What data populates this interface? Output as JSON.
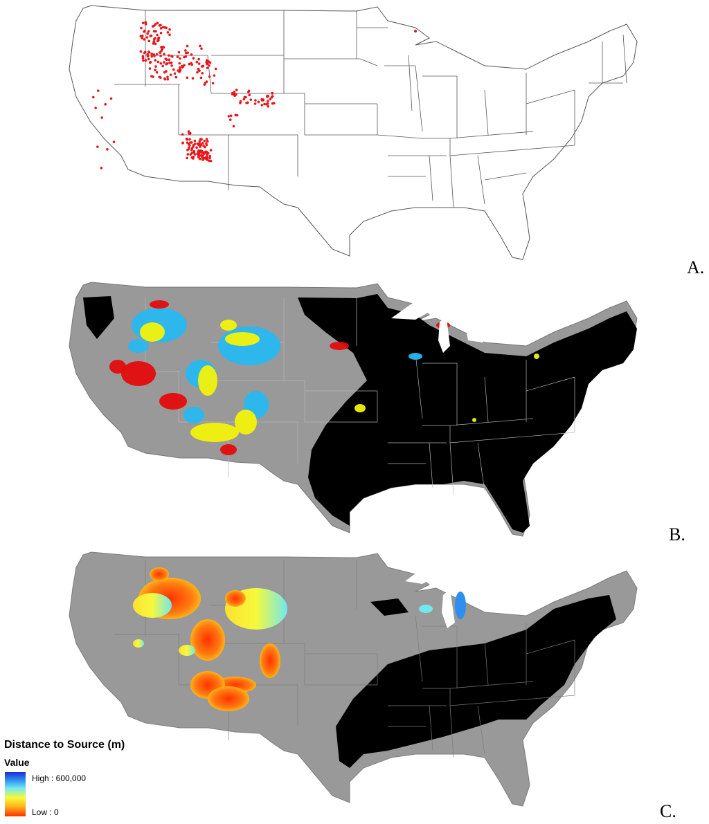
{
  "panels": [
    {
      "label": "A.",
      "fill": "#ffffff",
      "stroke": "#555555"
    },
    {
      "label": "B.",
      "fill": "#999999",
      "stroke": "#b5b5b5"
    },
    {
      "label": "C.",
      "fill": "#999999",
      "stroke": "#7d7d7d"
    }
  ],
  "legend": {
    "title": "Distance to Source (m)",
    "subtitle": "Value",
    "high_label": "High : 600,000",
    "low_label": "Low : 0"
  },
  "colors": {
    "point_red": "#e8161b",
    "black_mask": "#000000",
    "red": "#e30c0c",
    "yellow": "#f2f20c",
    "cyan": "#27b8f0",
    "orange": "#ff6a1a"
  }
}
